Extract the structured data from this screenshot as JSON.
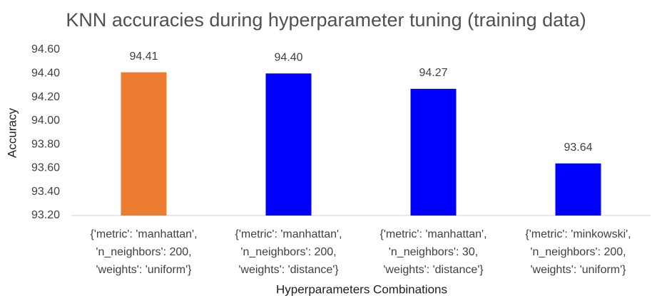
{
  "chart_data": {
    "type": "bar",
    "title": "KNN accuracies during hyperparameter tuning (training data)",
    "x_label": "Hyperparameters Combinations",
    "y_label": "Accuracy",
    "categories": [
      [
        "{'metric': 'manhattan',",
        "'n_neighbors': 200,",
        "'weights': 'uniform'}"
      ],
      [
        "{'metric': 'manhattan',",
        "'n_neighbors': 200,",
        "'weights': 'distance'}"
      ],
      [
        "{'metric': 'manhattan',",
        "'n_neighbors': 30,",
        "'weights': 'distance'}"
      ],
      [
        "{'metric': 'minkowski',",
        "'n_neighbors': 200,",
        "'weights': 'uniform'}"
      ]
    ],
    "values": [
      94.41,
      94.4,
      94.27,
      93.64
    ],
    "value_labels": [
      "94.41",
      "94.40",
      "94.27",
      "93.64"
    ],
    "colors": [
      "#ed7d31",
      "#0000ff",
      "#0000ff",
      "#0000ff"
    ],
    "ylim": [
      93.2,
      94.6
    ],
    "yticks": [
      {
        "value": 93.2,
        "label": "93.20"
      },
      {
        "value": 93.4,
        "label": "93.40"
      },
      {
        "value": 93.6,
        "label": "93.60"
      },
      {
        "value": 93.8,
        "label": "93.80"
      },
      {
        "value": 94.0,
        "label": "94.00"
      },
      {
        "value": 94.2,
        "label": "94.20"
      },
      {
        "value": 94.4,
        "label": "94.40"
      },
      {
        "value": 94.6,
        "label": "94.60"
      }
    ],
    "grid": false
  }
}
